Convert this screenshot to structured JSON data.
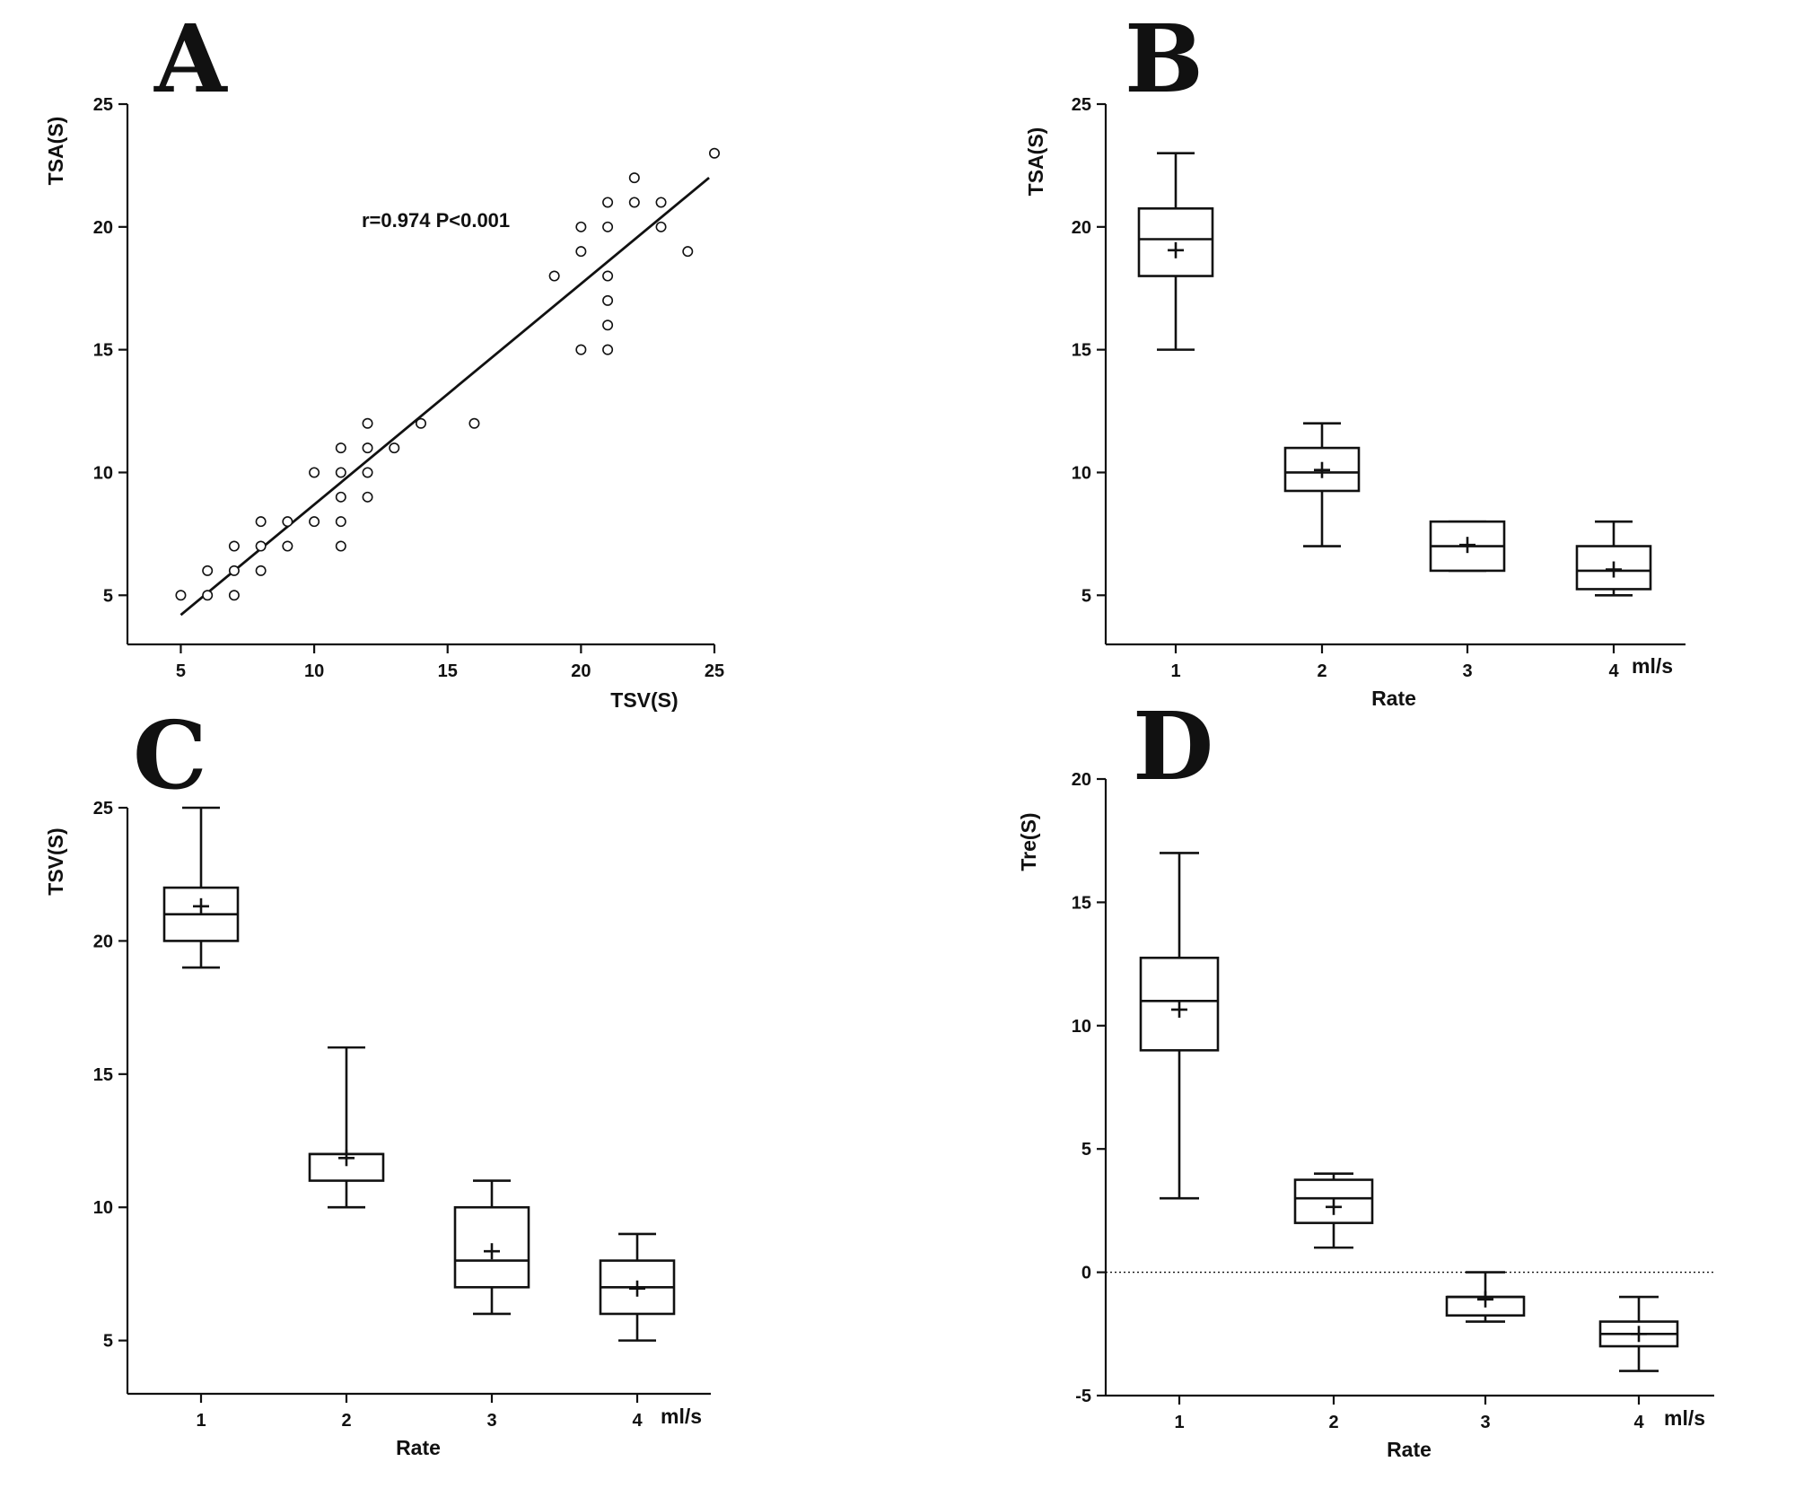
{
  "chart_data": [
    {
      "panel": "A",
      "type": "scatter",
      "xlabel": "TSV(S)",
      "ylabel": "TSA(S)",
      "xlim": [
        3,
        25
      ],
      "ylim": [
        3,
        25
      ],
      "xticks": [
        5,
        10,
        15,
        20,
        25
      ],
      "yticks": [
        5,
        10,
        15,
        20,
        25
      ],
      "annotation": "r=0.974 P<0.001",
      "points": [
        [
          5,
          5
        ],
        [
          6,
          5
        ],
        [
          6,
          6
        ],
        [
          7,
          5
        ],
        [
          7,
          6
        ],
        [
          7,
          7
        ],
        [
          8,
          6
        ],
        [
          8,
          7
        ],
        [
          8,
          8
        ],
        [
          9,
          7
        ],
        [
          9,
          8
        ],
        [
          10,
          8
        ],
        [
          10,
          10
        ],
        [
          11,
          7
        ],
        [
          11,
          8
        ],
        [
          11,
          9
        ],
        [
          11,
          10
        ],
        [
          11,
          11
        ],
        [
          12,
          9
        ],
        [
          12,
          10
        ],
        [
          12,
          11
        ],
        [
          12,
          12
        ],
        [
          13,
          11
        ],
        [
          14,
          12
        ],
        [
          16,
          12
        ],
        [
          19,
          18
        ],
        [
          20,
          15
        ],
        [
          20,
          19
        ],
        [
          20,
          20
        ],
        [
          21,
          15
        ],
        [
          21,
          16
        ],
        [
          21,
          17
        ],
        [
          21,
          18
        ],
        [
          21,
          20
        ],
        [
          21,
          21
        ],
        [
          22,
          21
        ],
        [
          22,
          22
        ],
        [
          23,
          20
        ],
        [
          23,
          21
        ],
        [
          24,
          19
        ],
        [
          25,
          23
        ]
      ],
      "fit_line": {
        "x": [
          5,
          24.8
        ],
        "y": [
          4.2,
          22
        ]
      }
    },
    {
      "panel": "B",
      "type": "box",
      "xlabel": "Rate",
      "ylabel": "TSA(S)",
      "unit_label": "ml/s",
      "categories": [
        "1",
        "2",
        "3",
        "4"
      ],
      "ylim": [
        3,
        25
      ],
      "yticks": [
        5,
        10,
        15,
        20,
        25
      ],
      "boxes": [
        {
          "min": 15,
          "q1": 18,
          "median": 19.5,
          "q3": 20.75,
          "max": 23,
          "mean": 19.05
        },
        {
          "min": 7,
          "q1": 9.25,
          "median": 10,
          "q3": 11,
          "max": 12,
          "mean": 10.1
        },
        {
          "min": 6,
          "q1": 6,
          "median": 7,
          "q3": 8,
          "max": 8,
          "mean": 7.05
        },
        {
          "min": 5,
          "q1": 5.25,
          "median": 6,
          "q3": 7,
          "max": 8,
          "mean": 6.05
        }
      ]
    },
    {
      "panel": "C",
      "type": "box",
      "xlabel": "Rate",
      "ylabel": "TSV(S)",
      "unit_label": "ml/s",
      "categories": [
        "1",
        "2",
        "3",
        "4"
      ],
      "ylim": [
        3,
        25
      ],
      "yticks": [
        5,
        10,
        15,
        20,
        25
      ],
      "boxes": [
        {
          "min": 19,
          "q1": 20,
          "median": 21,
          "q3": 22,
          "max": 25,
          "mean": 21.3
        },
        {
          "min": 10,
          "q1": 11,
          "median": 12,
          "q3": 12,
          "max": 16,
          "mean": 11.85
        },
        {
          "min": 6,
          "q1": 7,
          "median": 8,
          "q3": 10,
          "max": 11,
          "mean": 8.35
        },
        {
          "min": 5,
          "q1": 6,
          "median": 7,
          "q3": 8,
          "max": 9,
          "mean": 6.95
        }
      ]
    },
    {
      "panel": "D",
      "type": "box",
      "xlabel": "Rate",
      "ylabel": "Tre(S)",
      "unit_label": "ml/s",
      "categories": [
        "1",
        "2",
        "3",
        "4"
      ],
      "ylim": [
        -5,
        20
      ],
      "yticks": [
        -5,
        0,
        5,
        10,
        15,
        20
      ],
      "reference_line": 0,
      "boxes": [
        {
          "min": 3,
          "q1": 9,
          "median": 11,
          "q3": 12.75,
          "max": 17,
          "mean": 10.65
        },
        {
          "min": 1,
          "q1": 2,
          "median": 3,
          "q3": 3.75,
          "max": 4,
          "mean": 2.65
        },
        {
          "min": -2,
          "q1": -1.75,
          "median": -1,
          "q3": -1,
          "max": 0,
          "mean": -1.1
        },
        {
          "min": -4,
          "q1": -3,
          "median": -2.5,
          "q3": -2,
          "max": -1,
          "mean": -2.5
        }
      ]
    }
  ]
}
